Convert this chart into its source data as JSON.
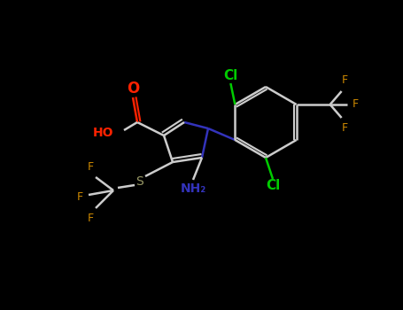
{
  "bg_color": "#000000",
  "fig_width": 4.55,
  "fig_height": 3.5,
  "dpi": 100,
  "colors": {
    "O": "#ff2200",
    "N": "#3333bb",
    "Cl": "#00cc00",
    "F": "#cc8800",
    "S": "#999966",
    "C": "#dddddd",
    "bond": "#cccccc",
    "HO": "#ff2200"
  }
}
